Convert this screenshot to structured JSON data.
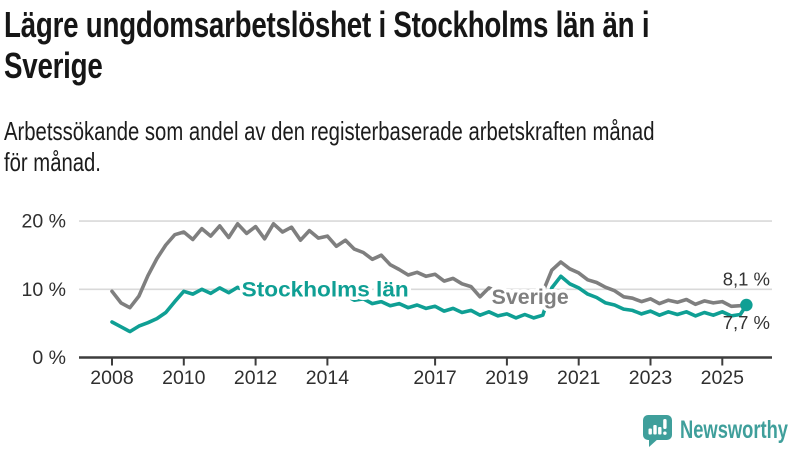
{
  "header": {
    "title_lines": [
      "Lägre ungdomsarbetslöshet i Stockholms län än i",
      "Sverige"
    ],
    "subtitle_lines": [
      "Arbetssökande som andel av den registerbaserade arbetskraften månad",
      "för månad."
    ]
  },
  "chart_data": {
    "type": "line",
    "title": "Lägre ungdomsarbetslöshet i Stockholms län än i Sverige",
    "subtitle": "Arbetssökande som andel av den registerbaserade arbetskraften månad för månad.",
    "unit": "%",
    "grid": "horizontal",
    "legend_position": "inline-labels",
    "xlim": [
      2007.1,
      2026.4
    ],
    "ylim": [
      0,
      22
    ],
    "x_ticks": [
      "2008",
      "2010",
      "2012",
      "2014",
      "2017",
      "2019",
      "2021",
      "2023",
      "2025"
    ],
    "x_tick_values": [
      2008,
      2010,
      2012,
      2014,
      2017,
      2019,
      2021,
      2023,
      2025
    ],
    "y_ticks": [
      {
        "v": 0,
        "label": "0 %"
      },
      {
        "v": 10,
        "label": "10 %"
      },
      {
        "v": 20,
        "label": "20 %"
      }
    ],
    "axis_color": "#3d3d3d",
    "grid_color": "#d9d9d9",
    "x": [
      2008,
      2008.25,
      2008.5,
      2008.75,
      2009,
      2009.25,
      2009.5,
      2009.75,
      2010,
      2010.25,
      2010.5,
      2010.75,
      2011,
      2011.25,
      2011.5,
      2011.75,
      2012,
      2012.25,
      2012.5,
      2012.75,
      2013,
      2013.25,
      2013.5,
      2013.75,
      2014,
      2014.25,
      2014.5,
      2014.75,
      2015,
      2015.25,
      2015.5,
      2015.75,
      2016,
      2016.25,
      2016.5,
      2016.75,
      2017,
      2017.25,
      2017.5,
      2017.75,
      2018,
      2018.25,
      2018.5,
      2018.75,
      2019,
      2019.25,
      2019.5,
      2019.75,
      2020,
      2020.25,
      2020.5,
      2020.75,
      2021,
      2021.25,
      2021.5,
      2021.75,
      2022,
      2022.25,
      2022.5,
      2022.75,
      2023,
      2023.25,
      2023.5,
      2023.75,
      2024,
      2024.25,
      2024.5,
      2024.75,
      2025,
      2025.25,
      2025.5,
      2025.67
    ],
    "series": [
      {
        "name": "Sverige",
        "color": "#7f7f7f",
        "end_label": "8,1 %",
        "end_value": 8.1,
        "end_label_offset": -17,
        "label_pos": {
          "x": 2019.65,
          "v": 8.9
        },
        "label_length": 77,
        "end_dot": false,
        "values": [
          9.7,
          8.0,
          7.3,
          9.0,
          12.0,
          14.5,
          16.5,
          18.0,
          18.4,
          17.3,
          18.9,
          17.8,
          19.3,
          17.6,
          19.6,
          18.2,
          19.2,
          17.4,
          19.6,
          18.4,
          19.1,
          17.2,
          18.6,
          17.5,
          17.8,
          16.3,
          17.2,
          15.9,
          15.4,
          14.4,
          15.0,
          13.6,
          12.9,
          12.1,
          12.5,
          11.9,
          12.2,
          11.2,
          11.6,
          10.8,
          10.4,
          8.9,
          10.2,
          9.7,
          9.4,
          8.7,
          9.3,
          9.0,
          9.6,
          12.8,
          14.0,
          13.0,
          12.4,
          11.4,
          11.0,
          10.3,
          9.8,
          8.9,
          8.7,
          8.2,
          8.6,
          7.9,
          8.4,
          8.1,
          8.5,
          7.8,
          8.3,
          8.0,
          8.2,
          7.5,
          7.6,
          8.1
        ]
      },
      {
        "name": "Stockholms län",
        "color": "#0f9f94",
        "end_label": "7,7 %",
        "end_value": 7.7,
        "end_label_offset": 24,
        "label_pos": {
          "x": 2013.94,
          "v": 10.0
        },
        "label_length": 167,
        "end_dot": true,
        "values": [
          5.2,
          4.5,
          3.8,
          4.6,
          5.1,
          5.7,
          6.6,
          8.2,
          9.7,
          9.3,
          10.0,
          9.4,
          10.2,
          9.5,
          10.3,
          9.6,
          10.1,
          9.4,
          10.5,
          9.7,
          10.2,
          9.5,
          9.9,
          9.2,
          9.4,
          8.7,
          9.1,
          8.4,
          8.6,
          7.9,
          8.2,
          7.6,
          7.9,
          7.3,
          7.7,
          7.2,
          7.5,
          6.8,
          7.2,
          6.6,
          6.9,
          6.2,
          6.7,
          6.1,
          6.4,
          5.8,
          6.3,
          5.8,
          6.2,
          10.2,
          11.9,
          10.8,
          10.2,
          9.3,
          8.8,
          8.0,
          7.7,
          7.1,
          6.9,
          6.4,
          6.8,
          6.2,
          6.7,
          6.3,
          6.7,
          6.1,
          6.6,
          6.2,
          6.7,
          6.1,
          6.3,
          7.7
        ]
      }
    ]
  },
  "footer": {
    "brand": "Newsworthy",
    "brand_color": "#3f9f9b",
    "logo_icon": "bar-chart-speech-bubble-icon"
  }
}
